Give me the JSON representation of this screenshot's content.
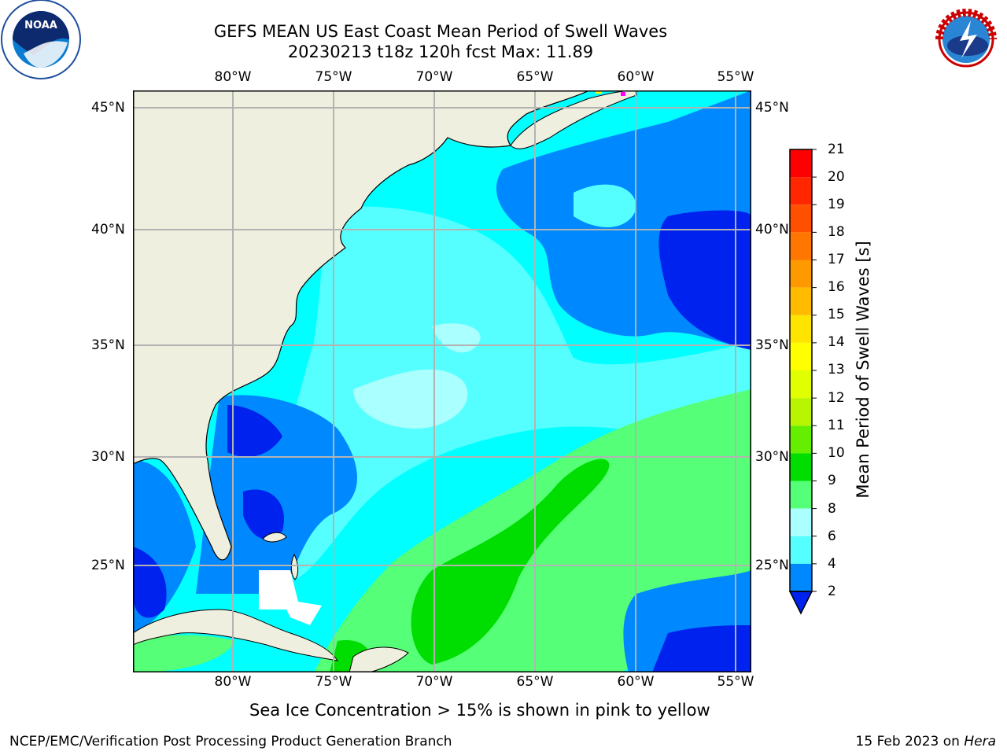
{
  "title_line1": "GEFS MEAN US East Coast Mean Period of Swell Waves",
  "title_line2": "20230213 t18z 120h fcst   Max: 11.89",
  "longitude_ticks": [
    "80°W",
    "75°W",
    "70°W",
    "65°W",
    "60°W",
    "55°W"
  ],
  "latitude_ticks": [
    "45°N",
    "40°N",
    "35°N",
    "30°N",
    "25°N"
  ],
  "colorbar": {
    "title": "Mean Period of Swell Waves [s]",
    "labels": [
      "21",
      "20",
      "19",
      "18",
      "17",
      "16",
      "15",
      "14",
      "13",
      "12",
      "11",
      "10",
      "9",
      "8",
      "6",
      "4",
      "2"
    ],
    "colors": [
      "#ff0000",
      "#ff2600",
      "#ff4f00",
      "#ff7700",
      "#ff9900",
      "#ffbb00",
      "#ffe400",
      "#ffff00",
      "#e0ff00",
      "#b9f500",
      "#66ee00",
      "#00dd00",
      "#55ff77",
      "#aaffff",
      "#55ffff",
      "#00ffff",
      "#0088ff"
    ],
    "extend_color": "#0022ee"
  },
  "note": "Sea Ice Concentration > 15% is shown in pink to yellow",
  "footer_left": "NCEP/EMC/Verification Post Processing Product Generation Branch",
  "footer_date": "15 Feb 2023 on ",
  "footer_machine": "Hera",
  "colors": {
    "land": "#efefdf",
    "grid": "#b3b3b3",
    "ocean_base": "#00ffff"
  },
  "logos": {
    "noaa": "NOAA",
    "nws": "NATIONAL WEATHER SERVICE"
  }
}
